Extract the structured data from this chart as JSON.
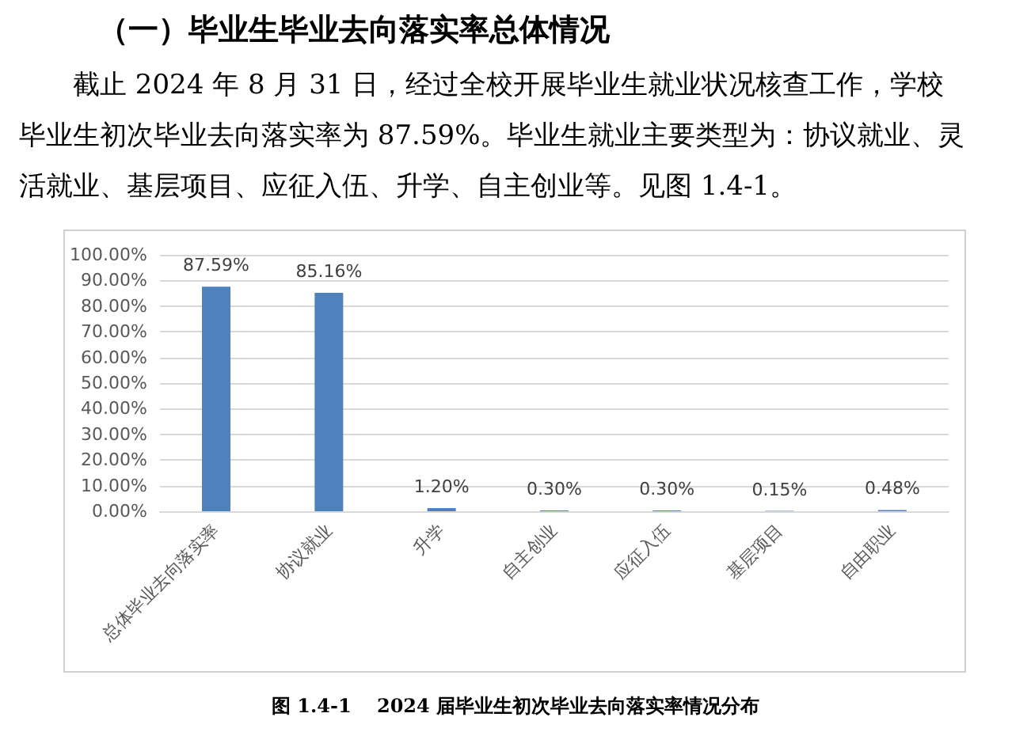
{
  "chart_data": {
    "type": "bar",
    "title": "（一）毕业生毕业去向落实率总体情况",
    "subtitle": "截止 2024 年 8 月 31 日，经过全校开展毕业生就业状况核查工作，学校毕业生初次毕业去向落实率为 87.59%。毕业生就业主要类型为：协议就业、灵活就业、基层项目、应征入伍、升学、自主创业等。见图 1.4-1。",
    "annotations": [
      "图 1.4-1　 2024 届毕业生初次毕业去向落实率情况分布"
    ],
    "categories": [
      "总体毕业去向落实率",
      "协议就业",
      "升学",
      "自主创业",
      "应征入伍",
      "基层项目",
      "自由职业"
    ],
    "values": [
      87.59,
      85.16,
      1.2,
      0.3,
      0.3,
      0.15,
      0.48
    ],
    "value_labels": [
      "87.59%",
      "85.16%",
      "1.20%",
      "0.30%",
      "0.30%",
      "0.15%",
      "0.48%"
    ],
    "color": "#4f81bd",
    "ylim": [
      0,
      100
    ],
    "yticks": [
      {
        "value": 0,
        "label": "0.00%"
      },
      {
        "value": 10,
        "label": "10.00%"
      },
      {
        "value": 20,
        "label": "20.00%"
      },
      {
        "value": 30,
        "label": "30.00%"
      },
      {
        "value": 40,
        "label": "40.00%"
      },
      {
        "value": 50,
        "label": "50.00%"
      },
      {
        "value": 60,
        "label": "60.00%"
      },
      {
        "value": 70,
        "label": "70.00%"
      },
      {
        "value": 80,
        "label": "80.00%"
      },
      {
        "value": 90,
        "label": "90.00%"
      },
      {
        "value": 100,
        "label": "100.00%"
      }
    ],
    "grid": "y"
  }
}
